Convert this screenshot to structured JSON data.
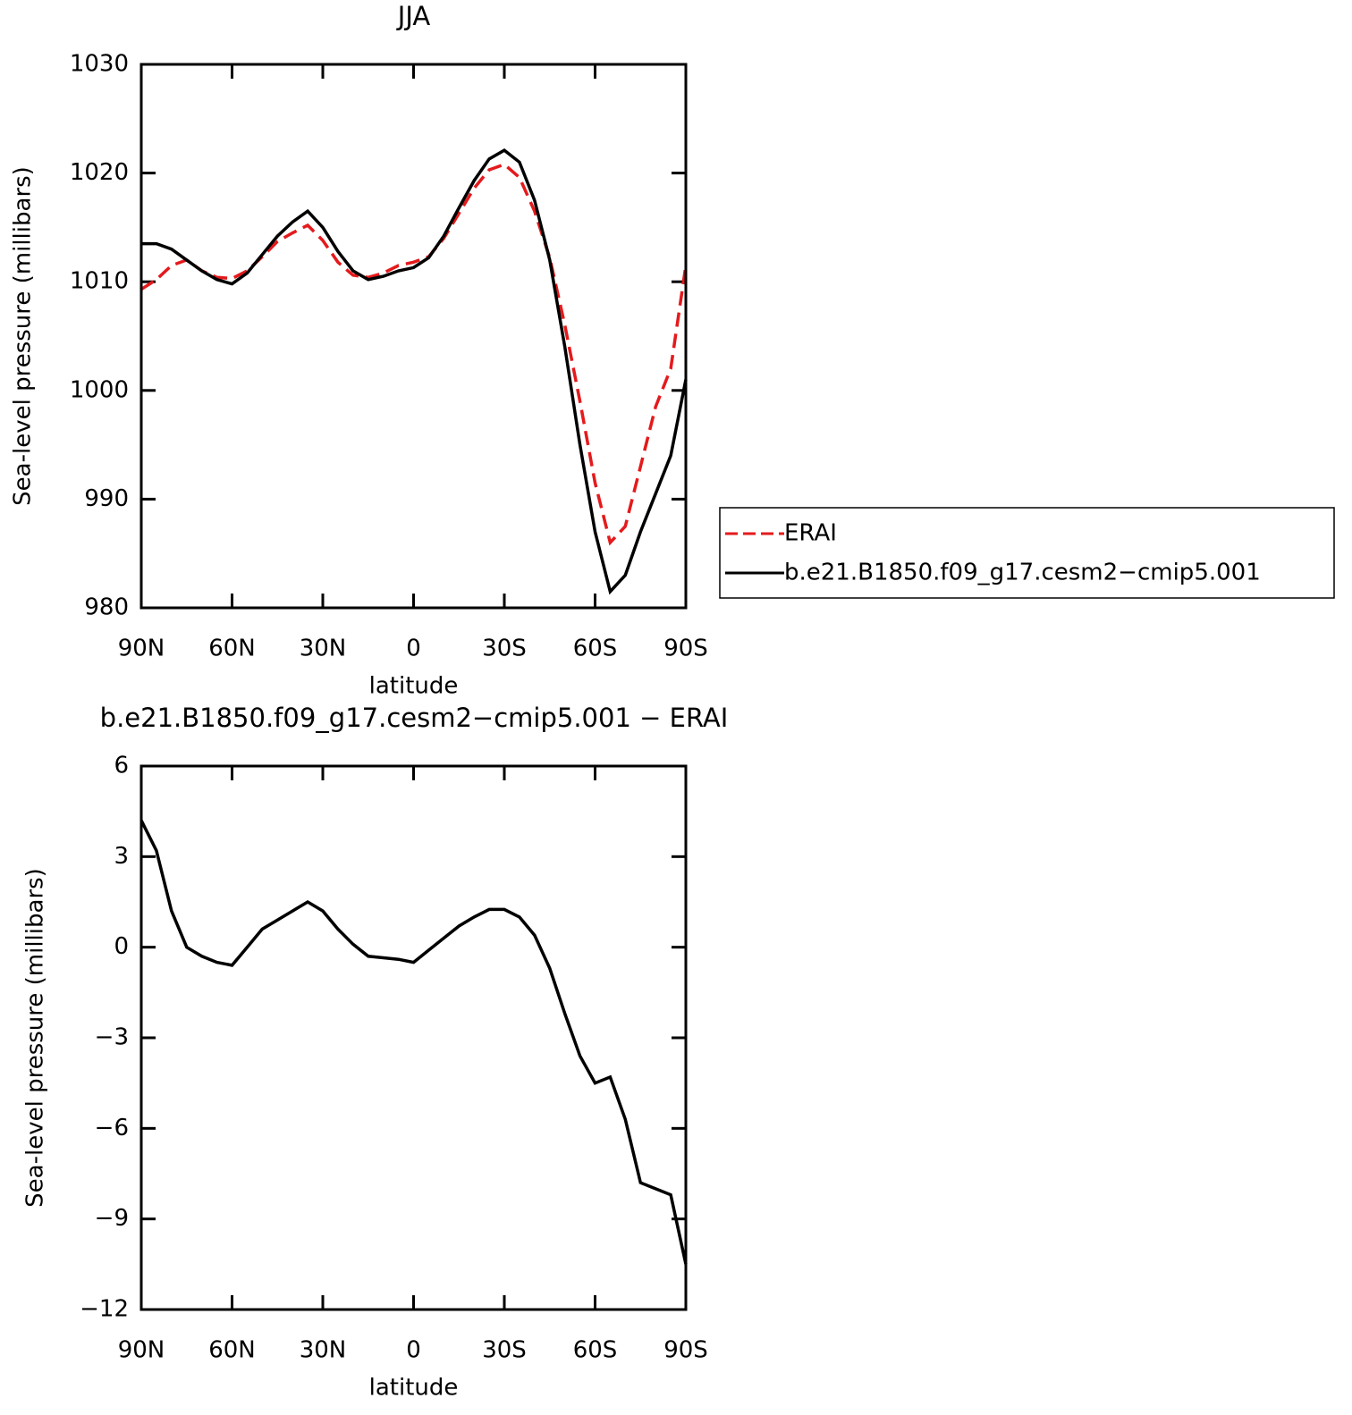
{
  "chart_data": [
    {
      "type": "line",
      "title": "JJA",
      "xlabel": "latitude",
      "ylabel": "Sea-level pressure (millibars)",
      "x": [
        90,
        85,
        80,
        75,
        70,
        65,
        60,
        55,
        50,
        45,
        40,
        35,
        30,
        25,
        20,
        15,
        10,
        5,
        0,
        -5,
        -10,
        -15,
        -20,
        -25,
        -30,
        -35,
        -40,
        -45,
        -50,
        -55,
        -60,
        -65,
        -70,
        -75,
        -80,
        -85,
        -90
      ],
      "series": [
        {
          "name": "ERAI",
          "color": "#e41a1c",
          "dash": true,
          "values": [
            1009.3,
            1010.2,
            1011.5,
            1012,
            1011,
            1010.4,
            1010.3,
            1011,
            1012.3,
            1013.7,
            1014.5,
            1015.2,
            1013.8,
            1011.8,
            1010.6,
            1010.4,
            1010.8,
            1011.5,
            1011.8,
            1012.3,
            1014,
            1016.3,
            1018.6,
            1020.3,
            1020.8,
            1019.6,
            1016.5,
            1012.2,
            1006,
            999,
            991.5,
            986,
            987.5,
            993,
            998.5,
            1002,
            1011.5
          ]
        },
        {
          "name": "b.e21.B1850.f09_g17.cesm2−cmip5.001",
          "color": "#000000",
          "dash": false,
          "values": [
            1013.5,
            1013.5,
            1013,
            1012,
            1011,
            1010.2,
            1009.8,
            1010.8,
            1012.5,
            1014.2,
            1015.5,
            1016.5,
            1015,
            1012.8,
            1011,
            1010.2,
            1010.5,
            1011,
            1011.3,
            1012.2,
            1014.2,
            1016.8,
            1019.3,
            1021.3,
            1022.1,
            1021,
            1017.5,
            1012,
            1004,
            995,
            987,
            981.5,
            983,
            987,
            990.5,
            994,
            1001
          ]
        }
      ],
      "xlim": [
        90,
        -90
      ],
      "xticks": [
        {
          "value": 90,
          "label": "90N"
        },
        {
          "value": 60,
          "label": "60N"
        },
        {
          "value": 30,
          "label": "30N"
        },
        0,
        {
          "value": -30,
          "label": "30S"
        },
        {
          "value": -60,
          "label": "60S"
        },
        {
          "value": -90,
          "label": "90S"
        }
      ],
      "ylim": [
        980,
        1030
      ],
      "yticks": [
        980,
        990,
        1000,
        1010,
        1020,
        1030
      ],
      "legend": "right"
    },
    {
      "type": "line",
      "title": "b.e21.B1850.f09_g17.cesm2−cmip5.001  −  ERAI",
      "xlabel": "latitude",
      "ylabel": "Sea-level pressure (millibars)",
      "x": [
        90,
        85,
        80,
        75,
        70,
        65,
        60,
        55,
        50,
        45,
        40,
        35,
        30,
        25,
        20,
        15,
        10,
        5,
        0,
        -5,
        -10,
        -15,
        -20,
        -25,
        -30,
        -35,
        -40,
        -45,
        -50,
        -55,
        -60,
        -65,
        -70,
        -75,
        -80,
        -85,
        -90
      ],
      "series": [
        {
          "color": "#000000",
          "dash": false,
          "values": [
            4.2,
            3.2,
            1.2,
            0,
            -0.3,
            -0.5,
            -0.6,
            0,
            0.6,
            0.9,
            1.2,
            1.5,
            1.2,
            0.6,
            0.1,
            -0.3,
            -0.35,
            -0.4,
            -0.5,
            -0.1,
            0.3,
            0.7,
            1.0,
            1.25,
            1.25,
            1.0,
            0.4,
            -0.7,
            -2.2,
            -3.6,
            -4.5,
            -4.3,
            -5.7,
            -7.8,
            -8.0,
            -8.2,
            -10.5
          ]
        }
      ],
      "xlim": [
        90,
        -90
      ],
      "xticks": [
        {
          "value": 90,
          "label": "90N"
        },
        {
          "value": 60,
          "label": "60N"
        },
        {
          "value": 30,
          "label": "30N"
        },
        0,
        {
          "value": -30,
          "label": "30S"
        },
        {
          "value": -60,
          "label": "60S"
        },
        {
          "value": -90,
          "label": "90S"
        }
      ],
      "ylim": [
        -12,
        6
      ],
      "yticks": [
        {
          "value": -12,
          "label": "−12"
        },
        {
          "value": -9,
          "label": "−9"
        },
        {
          "value": -6,
          "label": "−6"
        },
        {
          "value": -3,
          "label": "−3"
        },
        0,
        3,
        6
      ]
    }
  ]
}
